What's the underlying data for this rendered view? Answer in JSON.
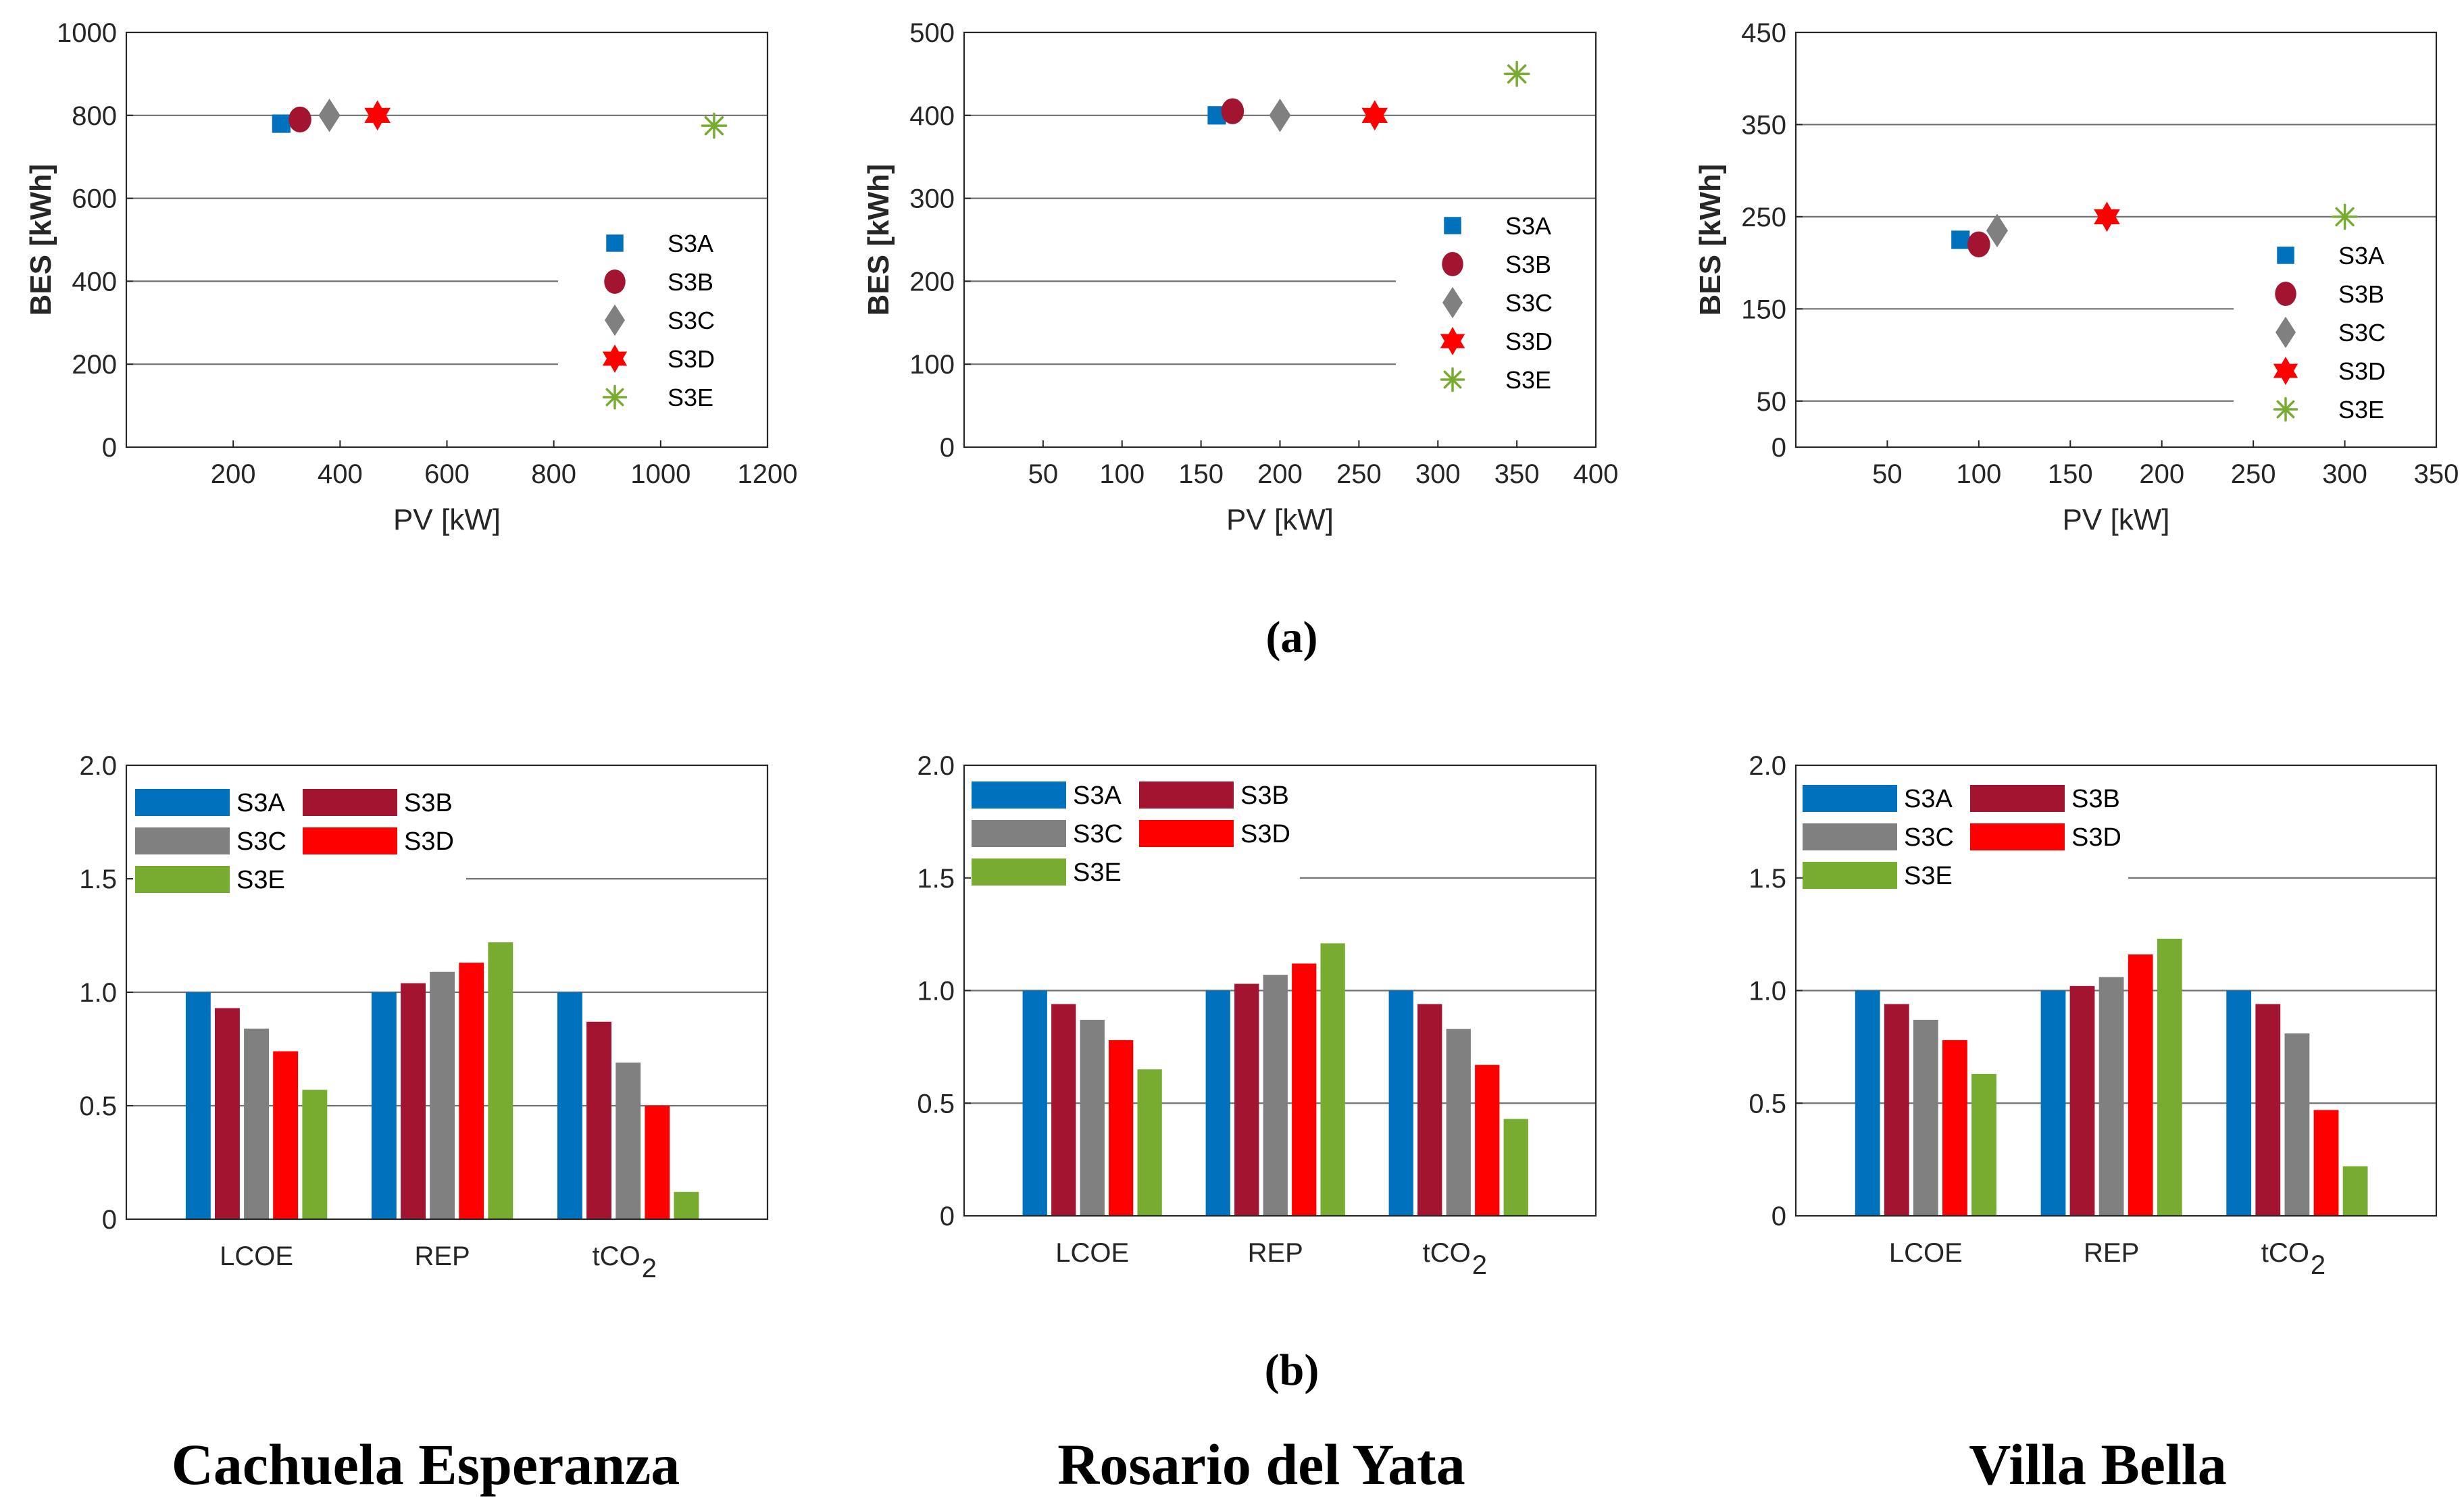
{
  "colors": {
    "S3A": "#0072BD",
    "S3B": "#A2142F",
    "S3C": "#808080",
    "S3D": "#FF0000",
    "S3E": "#77AC30"
  },
  "panel_labels": {
    "a": "(a)",
    "b": "(b)"
  },
  "sites": [
    "Cachuela Esperanza",
    "Rosario del Yata",
    "Villa Bella"
  ],
  "chart_data": [
    {
      "type": "scatter",
      "panel": "a",
      "site": "Cachuela Esperanza",
      "xlabel": "PV [kW]",
      "ylabel": "BES [kWh]",
      "xlim": [
        0,
        1200
      ],
      "ylim": [
        0,
        1000
      ],
      "xticks": [
        200,
        400,
        600,
        800,
        1000,
        1200
      ],
      "yticks": [
        0,
        200,
        400,
        600,
        800,
        1000
      ],
      "gridlines": [
        200,
        400,
        600,
        800
      ],
      "legend": "right",
      "series": [
        {
          "name": "S3A",
          "marker": "square",
          "x": 290,
          "y": 780
        },
        {
          "name": "S3B",
          "marker": "circle",
          "x": 325,
          "y": 790
        },
        {
          "name": "S3C",
          "marker": "diamond",
          "x": 380,
          "y": 800
        },
        {
          "name": "S3D",
          "marker": "hexagram",
          "x": 470,
          "y": 800
        },
        {
          "name": "S3E",
          "marker": "asterisk",
          "x": 1100,
          "y": 775
        }
      ]
    },
    {
      "type": "scatter",
      "panel": "a",
      "site": "Rosario del Yata",
      "xlabel": "PV [kW]",
      "ylabel": "BES [kWh]",
      "xlim": [
        0,
        400
      ],
      "ylim": [
        0,
        500
      ],
      "xticks": [
        50,
        100,
        150,
        200,
        250,
        300,
        350,
        400
      ],
      "yticks": [
        0,
        100,
        200,
        300,
        400,
        500
      ],
      "gridlines": [
        100,
        200,
        300,
        400
      ],
      "legend": "right",
      "series": [
        {
          "name": "S3A",
          "marker": "square",
          "x": 160,
          "y": 400
        },
        {
          "name": "S3B",
          "marker": "circle",
          "x": 170,
          "y": 405
        },
        {
          "name": "S3C",
          "marker": "diamond",
          "x": 200,
          "y": 400
        },
        {
          "name": "S3D",
          "marker": "hexagram",
          "x": 260,
          "y": 400
        },
        {
          "name": "S3E",
          "marker": "asterisk",
          "x": 350,
          "y": 450
        }
      ]
    },
    {
      "type": "scatter",
      "panel": "a",
      "site": "Villa Bella",
      "xlabel": "PV [kW]",
      "ylabel": "BES [kWh]",
      "xlim": [
        0,
        350
      ],
      "ylim": [
        0,
        450
      ],
      "xticks": [
        50,
        100,
        150,
        200,
        250,
        300,
        350
      ],
      "yticks": [
        0,
        50,
        150,
        250,
        350,
        450
      ],
      "gridlines": [
        50,
        150,
        250,
        350
      ],
      "legend": "right",
      "series": [
        {
          "name": "S3A",
          "marker": "square",
          "x": 90,
          "y": 225
        },
        {
          "name": "S3B",
          "marker": "circle",
          "x": 100,
          "y": 220
        },
        {
          "name": "S3C",
          "marker": "diamond",
          "x": 110,
          "y": 235
        },
        {
          "name": "S3D",
          "marker": "hexagram",
          "x": 170,
          "y": 250
        },
        {
          "name": "S3E",
          "marker": "asterisk",
          "x": 300,
          "y": 250
        }
      ]
    },
    {
      "type": "bar",
      "panel": "b",
      "site": "Cachuela Esperanza",
      "categories": [
        "LCOE",
        "REP",
        "tCO"
      ],
      "category_subscripts": [
        "",
        "",
        "2"
      ],
      "ylim": [
        0,
        2.0
      ],
      "yticks": [
        0,
        0.5,
        1.0,
        1.5,
        2.0
      ],
      "ytick_labels": [
        "0",
        "0.5",
        "1.0",
        "1.5",
        "2.0"
      ],
      "gridlines": [
        0.5,
        1.0,
        1.5
      ],
      "legend": "top-left",
      "series": [
        {
          "name": "S3A",
          "values": [
            1.0,
            1.0,
            1.0
          ]
        },
        {
          "name": "S3B",
          "values": [
            0.93,
            1.04,
            0.87
          ]
        },
        {
          "name": "S3C",
          "values": [
            0.84,
            1.09,
            0.69
          ]
        },
        {
          "name": "S3D",
          "values": [
            0.74,
            1.13,
            0.5
          ]
        },
        {
          "name": "S3E",
          "values": [
            0.57,
            1.22,
            0.12
          ]
        }
      ]
    },
    {
      "type": "bar",
      "panel": "b",
      "site": "Rosario del Yata",
      "categories": [
        "LCOE",
        "REP",
        "tCO"
      ],
      "category_subscripts": [
        "",
        "",
        "2"
      ],
      "ylim": [
        0,
        2.0
      ],
      "yticks": [
        0,
        0.5,
        1.0,
        1.5,
        2.0
      ],
      "ytick_labels": [
        "0",
        "0.5",
        "1.0",
        "1.5",
        "2.0"
      ],
      "gridlines": [
        0.5,
        1.0,
        1.5
      ],
      "legend": "top-left",
      "series": [
        {
          "name": "S3A",
          "values": [
            1.0,
            1.0,
            1.0
          ]
        },
        {
          "name": "S3B",
          "values": [
            0.94,
            1.03,
            0.94
          ]
        },
        {
          "name": "S3C",
          "values": [
            0.87,
            1.07,
            0.83
          ]
        },
        {
          "name": "S3D",
          "values": [
            0.78,
            1.12,
            0.67
          ]
        },
        {
          "name": "S3E",
          "values": [
            0.65,
            1.21,
            0.43
          ]
        }
      ]
    },
    {
      "type": "bar",
      "panel": "b",
      "site": "Villa Bella",
      "categories": [
        "LCOE",
        "REP",
        "tCO"
      ],
      "category_subscripts": [
        "",
        "",
        "2"
      ],
      "ylim": [
        0,
        2.0
      ],
      "yticks": [
        0,
        0.5,
        1.0,
        1.5,
        2.0
      ],
      "ytick_labels": [
        "0",
        "0.5",
        "1.0",
        "1.5",
        "2.0"
      ],
      "gridlines": [
        0.5,
        1.0,
        1.5
      ],
      "legend": "top-left",
      "series": [
        {
          "name": "S3A",
          "values": [
            1.0,
            1.0,
            1.0
          ]
        },
        {
          "name": "S3B",
          "values": [
            0.94,
            1.02,
            0.94
          ]
        },
        {
          "name": "S3C",
          "values": [
            0.87,
            1.06,
            0.81
          ]
        },
        {
          "name": "S3D",
          "values": [
            0.78,
            1.16,
            0.47
          ]
        },
        {
          "name": "S3E",
          "values": [
            0.63,
            1.23,
            0.22
          ]
        }
      ]
    }
  ]
}
